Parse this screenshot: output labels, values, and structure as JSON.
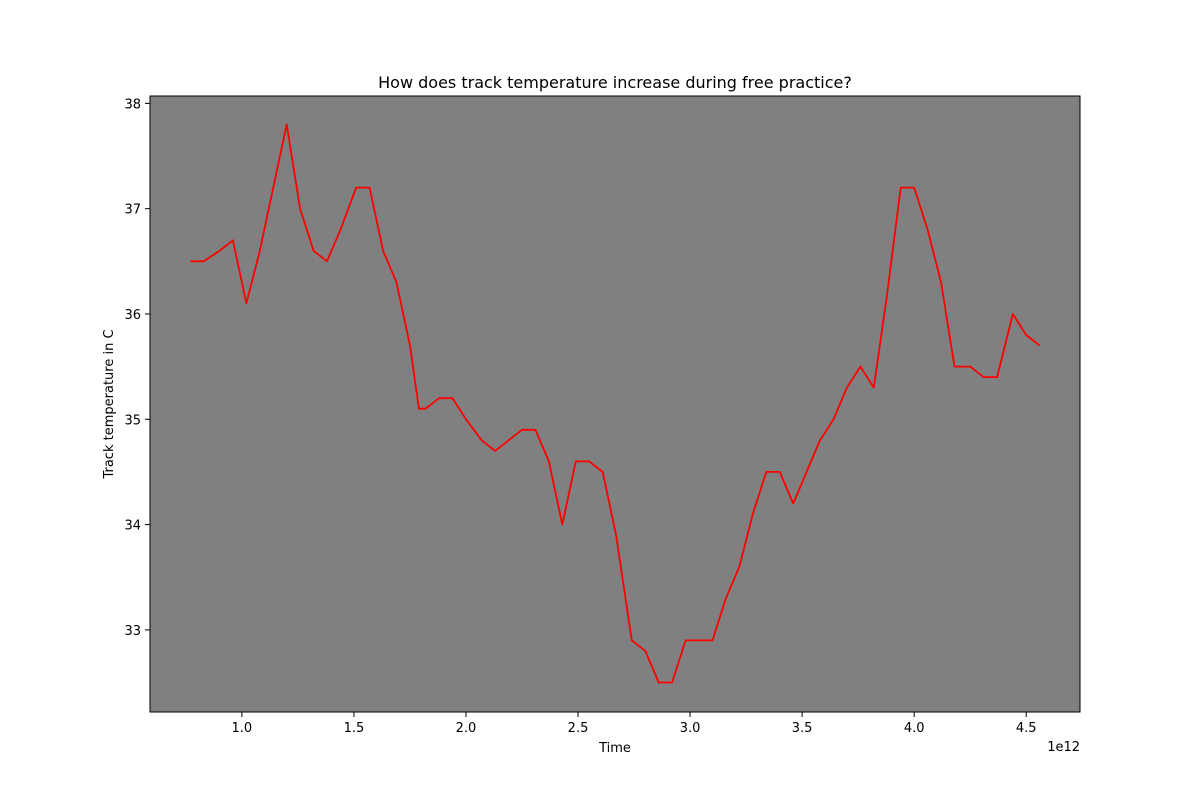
{
  "chart_data": {
    "type": "line",
    "title": "How does track temperature increase during free practice?",
    "xlabel": "Time",
    "ylabel": "Track temperature in C",
    "x_offset_label": "1e12",
    "x_scale": 1000000000000,
    "xlim": [
      0.59,
      4.74
    ],
    "ylim": [
      32.22,
      38.07
    ],
    "xticks": [
      1.0,
      1.5,
      2.0,
      2.5,
      3.0,
      3.5,
      4.0,
      4.5
    ],
    "xtick_labels": [
      "1.0",
      "1.5",
      "2.0",
      "2.5",
      "3.0",
      "3.5",
      "4.0",
      "4.5"
    ],
    "yticks": [
      33,
      34,
      35,
      36,
      37,
      38
    ],
    "ytick_labels": [
      "33",
      "34",
      "35",
      "36",
      "37",
      "38"
    ],
    "grid": false,
    "colors": {
      "plot_background": "#808080",
      "line": "#ff0000",
      "figure_background": "#ffffff"
    },
    "series": [
      {
        "x": [
          0.77,
          0.83,
          0.9,
          0.96,
          1.02,
          1.08,
          1.2,
          1.26,
          1.32,
          1.38,
          1.44,
          1.51,
          1.57,
          1.63,
          1.69,
          1.75,
          1.79,
          1.82,
          1.88,
          1.94,
          2.0,
          2.07,
          2.13,
          2.19,
          2.25,
          2.31,
          2.37,
          2.43,
          2.49,
          2.55,
          2.61,
          2.67,
          2.74,
          2.8,
          2.86,
          2.92,
          2.98,
          3.04,
          3.1,
          3.16,
          3.22,
          3.28,
          3.34,
          3.4,
          3.46,
          3.52,
          3.58,
          3.64,
          3.7,
          3.76,
          3.82,
          3.88,
          3.94,
          4.0,
          4.06,
          4.12,
          4.18,
          4.25,
          4.31,
          4.37,
          4.44,
          4.5,
          4.56
        ],
        "y": [
          36.5,
          36.5,
          36.6,
          36.7,
          36.1,
          36.6,
          37.8,
          37.0,
          36.6,
          36.5,
          36.8,
          37.2,
          37.2,
          36.6,
          36.3,
          35.7,
          35.1,
          35.1,
          35.2,
          35.2,
          35.0,
          34.8,
          34.7,
          34.8,
          34.9,
          34.9,
          34.6,
          34.0,
          34.6,
          34.6,
          34.5,
          33.9,
          32.9,
          32.8,
          32.5,
          32.5,
          32.9,
          32.9,
          32.9,
          33.3,
          33.6,
          34.1,
          34.5,
          34.5,
          34.2,
          34.5,
          34.8,
          35.0,
          35.3,
          35.5,
          35.3,
          36.2,
          37.2,
          37.2,
          36.8,
          36.3,
          35.5,
          35.5,
          35.4,
          35.4,
          36.0,
          35.8,
          35.7
        ]
      }
    ]
  }
}
